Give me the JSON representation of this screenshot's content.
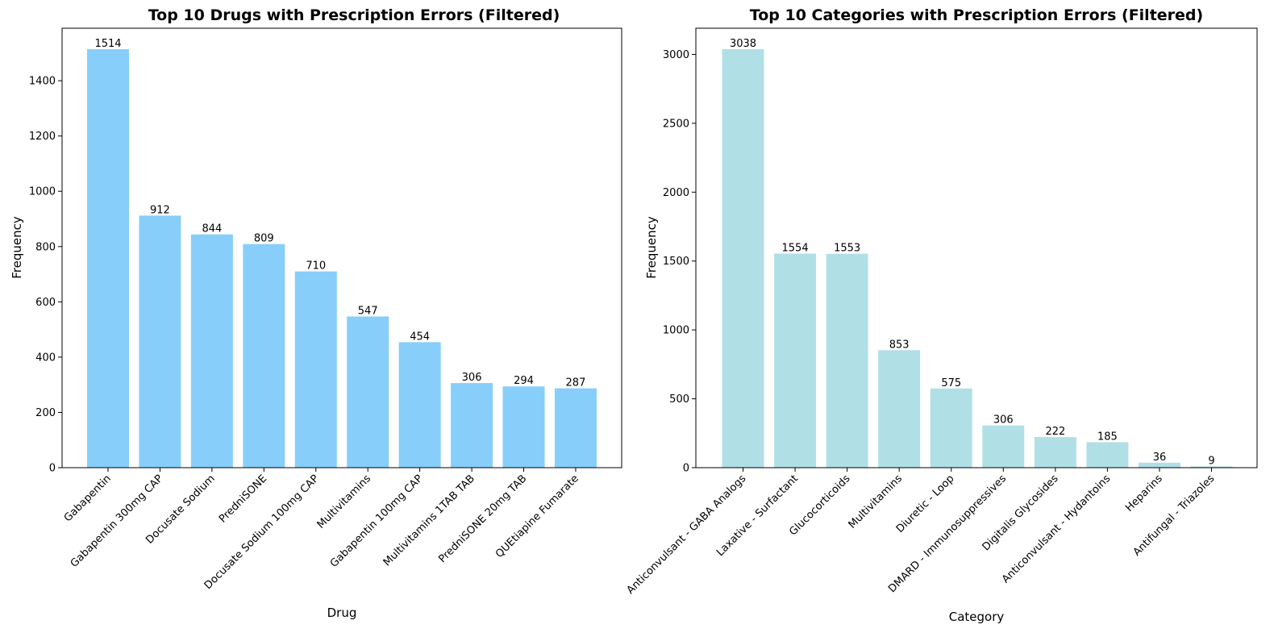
{
  "chart_data": [
    {
      "type": "bar",
      "title": "Top 10 Drugs with Prescription Errors (Filtered)",
      "xlabel": "Drug",
      "ylabel": "Frequency",
      "categories": [
        "Gabapentin",
        "Gabapentin 300mg CAP",
        "Docusate Sodium",
        "PredniSONE",
        "Docusate Sodium 100mg CAP",
        "Multivitamins",
        "Gabapentin 100mg CAP",
        "Multivitamins 1TAB TAB",
        "PredniSONE 20mg TAB",
        "QUEtiapine Fumarate"
      ],
      "values": [
        1514,
        912,
        844,
        809,
        710,
        547,
        454,
        306,
        294,
        287
      ],
      "ylim": [
        0,
        1590
      ],
      "yticks": [
        0,
        200,
        400,
        600,
        800,
        1000,
        1200,
        1400
      ],
      "bar_color": "#87CEFA",
      "grid": false
    },
    {
      "type": "bar",
      "title": "Top 10 Categories with Prescription Errors (Filtered)",
      "xlabel": "Category",
      "ylabel": "Frequency",
      "categories": [
        "Anticonvulsant - GABA Analogs",
        "Laxative - Surfactant",
        "Glucocorticoids",
        "Multivitamins",
        "Diuretic - Loop",
        "DMARD - Immunosuppressives",
        "Digitalis Glycosides",
        "Anticonvulsant - Hydantoins",
        "Heparins",
        "Antifungal - Triazoles"
      ],
      "values": [
        3038,
        1554,
        1553,
        853,
        575,
        306,
        222,
        185,
        36,
        9
      ],
      "ylim": [
        0,
        3190
      ],
      "yticks": [
        0,
        500,
        1000,
        1500,
        2000,
        2500,
        3000
      ],
      "bar_color": "#B0E0E6",
      "grid": false
    }
  ]
}
